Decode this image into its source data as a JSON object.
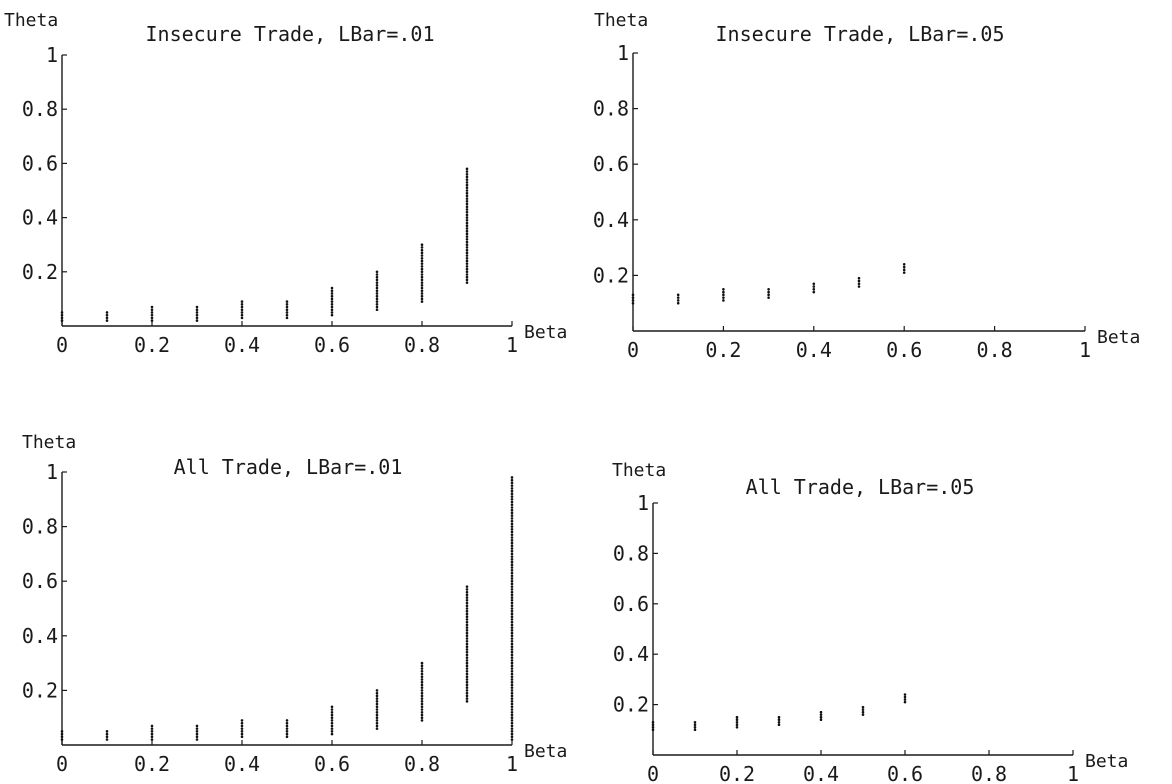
{
  "chart_data": [
    {
      "type": "scatter",
      "title": "Insecure Trade, LBar=.01",
      "xlabel": "Beta",
      "ylabel": "Theta",
      "xlim": [
        0,
        1
      ],
      "ylim": [
        0,
        1
      ],
      "xticks": [
        "0",
        "0.2",
        "0.4",
        "0.6",
        "0.8",
        "1"
      ],
      "yticks": [
        "0.2",
        "0.4",
        "0.6",
        "0.8",
        "1"
      ],
      "columns": [
        {
          "x": 0.0,
          "y_min": 0.02,
          "y_max": 0.05
        },
        {
          "x": 0.1,
          "y_min": 0.02,
          "y_max": 0.05
        },
        {
          "x": 0.2,
          "y_min": 0.02,
          "y_max": 0.07
        },
        {
          "x": 0.3,
          "y_min": 0.02,
          "y_max": 0.07
        },
        {
          "x": 0.4,
          "y_min": 0.03,
          "y_max": 0.09
        },
        {
          "x": 0.5,
          "y_min": 0.03,
          "y_max": 0.09
        },
        {
          "x": 0.6,
          "y_min": 0.04,
          "y_max": 0.14
        },
        {
          "x": 0.7,
          "y_min": 0.06,
          "y_max": 0.2
        },
        {
          "x": 0.8,
          "y_min": 0.09,
          "y_max": 0.3
        },
        {
          "x": 0.9,
          "y_min": 0.16,
          "y_max": 0.58
        }
      ]
    },
    {
      "type": "scatter",
      "title": "Insecure Trade, LBar=.05",
      "xlabel": "Beta",
      "ylabel": "Theta",
      "xlim": [
        0,
        1
      ],
      "ylim": [
        0,
        1
      ],
      "xticks": [
        "0",
        "0.2",
        "0.4",
        "0.6",
        "0.8",
        "1"
      ],
      "yticks": [
        "0.2",
        "0.4",
        "0.6",
        "0.8",
        "1"
      ],
      "columns": [
        {
          "x": 0.0,
          "y_min": 0.1,
          "y_max": 0.13
        },
        {
          "x": 0.1,
          "y_min": 0.1,
          "y_max": 0.13
        },
        {
          "x": 0.2,
          "y_min": 0.11,
          "y_max": 0.15
        },
        {
          "x": 0.3,
          "y_min": 0.12,
          "y_max": 0.15
        },
        {
          "x": 0.4,
          "y_min": 0.14,
          "y_max": 0.17
        },
        {
          "x": 0.5,
          "y_min": 0.16,
          "y_max": 0.19
        },
        {
          "x": 0.6,
          "y_min": 0.21,
          "y_max": 0.24
        }
      ]
    },
    {
      "type": "scatter",
      "title": "All Trade, LBar=.01",
      "xlabel": "Beta",
      "ylabel": "Theta",
      "xlim": [
        0,
        1
      ],
      "ylim": [
        0,
        1
      ],
      "xticks": [
        "0",
        "0.2",
        "0.4",
        "0.6",
        "0.8",
        "1"
      ],
      "yticks": [
        "0.2",
        "0.4",
        "0.6",
        "0.8",
        "1"
      ],
      "columns": [
        {
          "x": 0.0,
          "y_min": 0.02,
          "y_max": 0.05
        },
        {
          "x": 0.1,
          "y_min": 0.02,
          "y_max": 0.05
        },
        {
          "x": 0.2,
          "y_min": 0.02,
          "y_max": 0.07
        },
        {
          "x": 0.3,
          "y_min": 0.02,
          "y_max": 0.07
        },
        {
          "x": 0.4,
          "y_min": 0.03,
          "y_max": 0.09
        },
        {
          "x": 0.5,
          "y_min": 0.03,
          "y_max": 0.09
        },
        {
          "x": 0.6,
          "y_min": 0.04,
          "y_max": 0.14
        },
        {
          "x": 0.7,
          "y_min": 0.06,
          "y_max": 0.2
        },
        {
          "x": 0.8,
          "y_min": 0.09,
          "y_max": 0.3
        },
        {
          "x": 0.9,
          "y_min": 0.16,
          "y_max": 0.58
        },
        {
          "x": 1.0,
          "y_min": 0.02,
          "y_max": 0.98
        }
      ]
    },
    {
      "type": "scatter",
      "title": "All Trade, LBar=.05",
      "xlabel": "Beta",
      "ylabel": "Theta",
      "xlim": [
        0,
        1
      ],
      "ylim": [
        0,
        1
      ],
      "xticks": [
        "0",
        "0.2",
        "0.4",
        "0.6",
        "0.8",
        "1"
      ],
      "yticks": [
        "0.2",
        "0.4",
        "0.6",
        "0.8",
        "1"
      ],
      "columns": [
        {
          "x": 0.0,
          "y_min": 0.1,
          "y_max": 0.13
        },
        {
          "x": 0.1,
          "y_min": 0.1,
          "y_max": 0.13
        },
        {
          "x": 0.2,
          "y_min": 0.11,
          "y_max": 0.15
        },
        {
          "x": 0.3,
          "y_min": 0.12,
          "y_max": 0.15
        },
        {
          "x": 0.4,
          "y_min": 0.14,
          "y_max": 0.17
        },
        {
          "x": 0.5,
          "y_min": 0.16,
          "y_max": 0.19
        },
        {
          "x": 0.6,
          "y_min": 0.21,
          "y_max": 0.24
        }
      ]
    }
  ]
}
